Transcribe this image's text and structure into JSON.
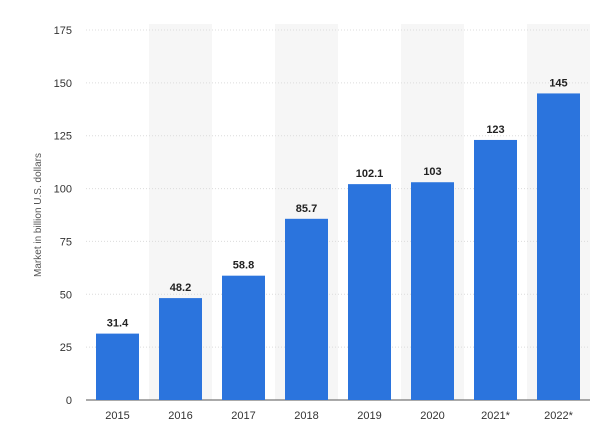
{
  "chart_data": {
    "type": "bar",
    "title": "",
    "xlabel": "",
    "ylabel": "Market in billion U.S. dollars",
    "ylim": [
      0,
      175
    ],
    "yticks": [
      0,
      25,
      50,
      75,
      100,
      125,
      150,
      175
    ],
    "grid": true,
    "categories": [
      "2015",
      "2016",
      "2017",
      "2018",
      "2019",
      "2020",
      "2021*",
      "2022*"
    ],
    "values": [
      31.4,
      48.2,
      58.8,
      85.7,
      102.1,
      103,
      123,
      145
    ],
    "value_labels": [
      "31.4",
      "48.2",
      "58.8",
      "85.7",
      "102.1",
      "103",
      "123",
      "145"
    ],
    "bar_color": "#2b74dd",
    "alt_band_color": "#f6f6f6",
    "grid_color": "#dcdcdc"
  }
}
